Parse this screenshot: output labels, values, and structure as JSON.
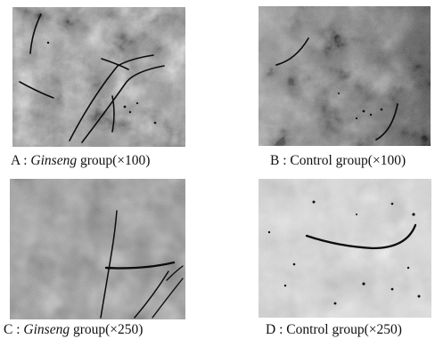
{
  "figure": {
    "panels": [
      {
        "id": "A",
        "caption_prefix": "A : ",
        "caption_italic": "Ginseng",
        "caption_suffix": " group(×100)"
      },
      {
        "id": "B",
        "caption_prefix": "B : ",
        "caption_italic": "",
        "caption_suffix": "Control group(×100)"
      },
      {
        "id": "C",
        "caption_prefix": "C : ",
        "caption_italic": "Ginseng",
        "caption_suffix": " group(×250)"
      },
      {
        "id": "D",
        "caption_prefix": "D : ",
        "caption_italic": "",
        "caption_suffix": "Control group(×250)"
      }
    ]
  }
}
